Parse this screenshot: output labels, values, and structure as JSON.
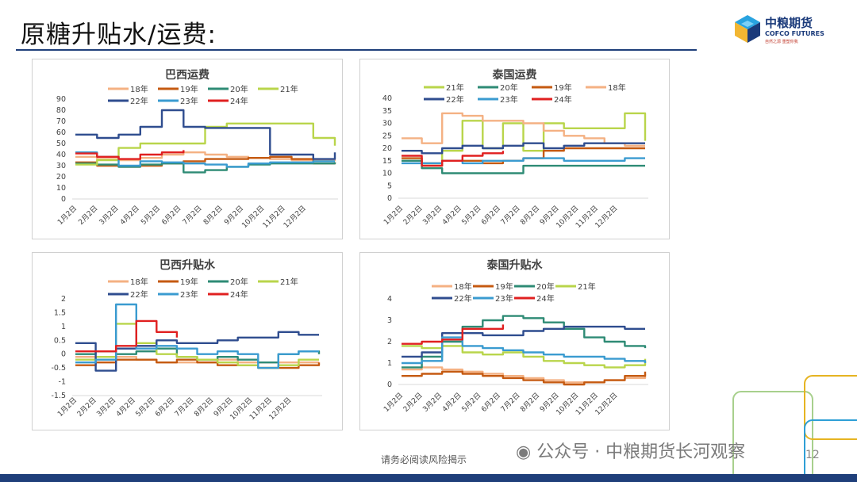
{
  "page": {
    "title": "原糖升贴水/运费:",
    "footer": "请务必阅读风险揭示",
    "watermark": "公众号 · 中粮期货长河观察",
    "page_number": "12",
    "logo": {
      "cn": "中粮期货",
      "en": "COFCO FUTURES",
      "slogan": "自然之源 重塑你我"
    }
  },
  "colors": {
    "18年": "#f4b183",
    "19年": "#c55a11",
    "20年": "#2e8b75",
    "21年": "#b9d54b",
    "22年": "#2f4d8f",
    "23年": "#3a9bd0",
    "24年": "#e02020",
    "title_rule": "#1f3f7a",
    "logo_blue": "#1a3a7a"
  },
  "x_ticks": [
    "1月2日",
    "2月2日",
    "3月2日",
    "4月2日",
    "5月2日",
    "6月2日",
    "7月2日",
    "8月2日",
    "9月2日",
    "10月2日",
    "11月2日",
    "12月2日"
  ],
  "chart_data": [
    {
      "type": "line",
      "title": "巴西运费",
      "ylim": [
        0,
        90
      ],
      "yticks": [
        0,
        10,
        20,
        30,
        40,
        50,
        60,
        70,
        80,
        90
      ],
      "legend": [
        "18年",
        "19年",
        "20年",
        "21年",
        "22年",
        "23年",
        "24年"
      ],
      "series": [
        {
          "name": "18年",
          "values": [
            38,
            36,
            35,
            37,
            40,
            42,
            40,
            38,
            37,
            36,
            35,
            35,
            34
          ]
        },
        {
          "name": "19年",
          "values": [
            33,
            30,
            29,
            30,
            32,
            34,
            36,
            36,
            37,
            38,
            36,
            32,
            33
          ]
        },
        {
          "name": "20年",
          "values": [
            32,
            31,
            29,
            31,
            32,
            24,
            26,
            29,
            31,
            32,
            32,
            32,
            33
          ]
        },
        {
          "name": "21年",
          "values": [
            31,
            35,
            46,
            50,
            50,
            50,
            65,
            68,
            68,
            68,
            68,
            55,
            48
          ]
        },
        {
          "name": "22年",
          "values": [
            58,
            55,
            58,
            65,
            80,
            65,
            64,
            64,
            64,
            40,
            40,
            36,
            42
          ]
        },
        {
          "name": "23年",
          "values": [
            42,
            38,
            30,
            34,
            33,
            32,
            31,
            29,
            32,
            33,
            33,
            34,
            34
          ]
        },
        {
          "name": "24年",
          "values": [
            41,
            38,
            36,
            40,
            42,
            44,
            null,
            null,
            null,
            null,
            null,
            null,
            null
          ]
        }
      ],
      "xlabel": "",
      "ylabel": ""
    },
    {
      "type": "line",
      "title": "泰国运费",
      "ylim": [
        0,
        40
      ],
      "yticks": [
        0,
        5,
        10,
        15,
        20,
        25,
        30,
        35,
        40
      ],
      "legend": [
        "21年",
        "20年",
        "19年",
        "18年",
        "22年",
        "23年",
        "24年"
      ],
      "series": [
        {
          "name": "21年",
          "values": [
            15,
            13,
            19,
            31,
            20,
            30,
            19,
            30,
            28,
            28,
            28,
            34,
            23
          ]
        },
        {
          "name": "20年",
          "values": [
            15,
            12,
            10,
            10,
            10,
            10,
            13,
            13,
            13,
            13,
            13,
            13,
            13
          ]
        },
        {
          "name": "19年",
          "values": [
            16,
            14,
            15,
            15,
            14,
            15,
            16,
            19,
            20,
            20,
            20,
            20,
            20
          ]
        },
        {
          "name": "18年",
          "values": [
            24,
            22,
            34,
            33,
            31,
            31,
            30,
            27,
            25,
            24,
            22,
            21,
            21
          ]
        },
        {
          "name": "22年",
          "values": [
            19,
            18,
            20,
            21,
            20,
            21,
            22,
            20,
            21,
            22,
            22,
            22,
            22
          ]
        },
        {
          "name": "23年",
          "values": [
            14,
            14,
            15,
            14,
            15,
            15,
            16,
            16,
            15,
            15,
            15,
            16,
            16
          ]
        },
        {
          "name": "24年",
          "values": [
            17,
            13,
            15,
            17,
            18,
            19,
            null,
            null,
            null,
            null,
            null,
            null,
            null
          ]
        }
      ],
      "xlabel": "",
      "ylabel": ""
    },
    {
      "type": "line",
      "title": "巴西升贴水",
      "ylim": [
        -1.5,
        2
      ],
      "yticks": [
        -1.5,
        -1,
        -0.5,
        0,
        0.5,
        1,
        1.5,
        2
      ],
      "legend": [
        "18年",
        "19年",
        "20年",
        "21年",
        "22年",
        "23年",
        "24年"
      ],
      "series": [
        {
          "name": "18年",
          "values": [
            -0.1,
            -0.2,
            -0.1,
            -0.2,
            -0.3,
            -0.3,
            -0.3,
            -0.2,
            -0.3,
            -0.3,
            -0.3,
            -0.3,
            -0.3
          ]
        },
        {
          "name": "19年",
          "values": [
            -0.4,
            -0.3,
            -0.2,
            -0.2,
            -0.3,
            -0.2,
            -0.3,
            -0.4,
            -0.4,
            -0.5,
            -0.5,
            -0.4,
            -0.3
          ]
        },
        {
          "name": "20年",
          "values": [
            0.0,
            0.1,
            0.0,
            0.1,
            0.2,
            -0.1,
            -0.2,
            -0.1,
            -0.2,
            -0.3,
            0.0,
            0.1,
            0.0
          ]
        },
        {
          "name": "21年",
          "values": [
            -0.2,
            -0.1,
            1.1,
            0.4,
            0.0,
            -0.1,
            -0.2,
            -0.3,
            -0.4,
            -0.5,
            -0.4,
            -0.2,
            -0.2
          ]
        },
        {
          "name": "22年",
          "values": [
            0.4,
            -0.6,
            0.2,
            0.3,
            0.5,
            0.4,
            0.4,
            0.5,
            0.6,
            0.6,
            0.8,
            0.7,
            0.7
          ]
        },
        {
          "name": "23年",
          "values": [
            -0.3,
            -0.2,
            1.8,
            0.2,
            0.3,
            0.2,
            0.0,
            0.1,
            0.0,
            -0.5,
            0.0,
            0.1,
            0.1
          ]
        },
        {
          "name": "24年",
          "values": [
            0.1,
            0.1,
            0.3,
            1.2,
            0.8,
            0.6,
            null,
            null,
            null,
            null,
            null,
            null,
            null
          ]
        }
      ],
      "xlabel": "",
      "ylabel": ""
    },
    {
      "type": "line",
      "title": "泰国升贴水",
      "ylim": [
        0,
        4
      ],
      "yticks": [
        0,
        1,
        2,
        3,
        4
      ],
      "legend": [
        "18年",
        "19年",
        "20年",
        "21年",
        "22年",
        "23年",
        "24年"
      ],
      "series": [
        {
          "name": "18年",
          "values": [
            0.7,
            0.8,
            0.7,
            0.6,
            0.5,
            0.4,
            0.3,
            0.2,
            0.1,
            0.1,
            0.2,
            0.3,
            0.5
          ]
        },
        {
          "name": "19年",
          "values": [
            0.4,
            0.5,
            0.6,
            0.5,
            0.4,
            0.3,
            0.2,
            0.1,
            0.0,
            0.1,
            0.2,
            0.4,
            0.6
          ]
        },
        {
          "name": "20年",
          "values": [
            0.8,
            1.3,
            2.0,
            2.7,
            3.0,
            3.2,
            3.1,
            2.9,
            2.6,
            2.2,
            2.0,
            1.8,
            1.7
          ]
        },
        {
          "name": "21年",
          "values": [
            1.8,
            1.7,
            1.8,
            1.5,
            1.4,
            1.5,
            1.3,
            1.1,
            1.0,
            0.9,
            0.8,
            0.9,
            1.2
          ]
        },
        {
          "name": "22年",
          "values": [
            1.3,
            1.5,
            2.4,
            2.4,
            2.3,
            2.3,
            2.5,
            2.6,
            2.7,
            2.7,
            2.7,
            2.6,
            2.6
          ]
        },
        {
          "name": "23年",
          "values": [
            1.0,
            1.1,
            2.2,
            1.8,
            1.7,
            1.6,
            1.5,
            1.4,
            1.3,
            1.3,
            1.2,
            1.1,
            1.0
          ]
        },
        {
          "name": "24年",
          "values": [
            1.9,
            2.0,
            2.1,
            2.6,
            2.6,
            2.8,
            null,
            null,
            null,
            null,
            null,
            null,
            null
          ]
        }
      ],
      "xlabel": "",
      "ylabel": ""
    }
  ]
}
